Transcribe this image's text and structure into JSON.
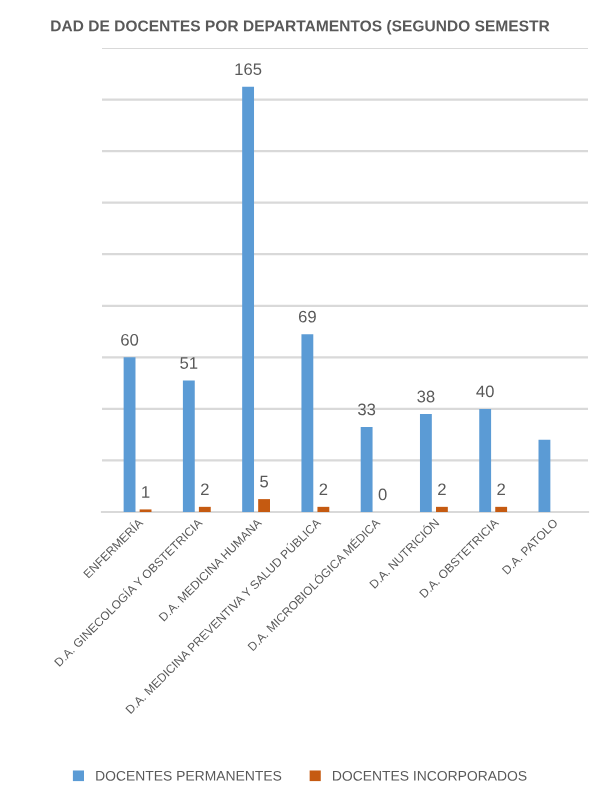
{
  "chart_data": {
    "type": "bar",
    "title": "DAD DE DOCENTES POR DEPARTAMENTOS (SEGUNDO SEMESTR",
    "categories": [
      "ENFERMERÍA",
      "D.A. GINECOLOGÍA Y OBSTETRICIA",
      "D.A. MEDICINA HUMANA",
      "D.A. MEDICINA PREVENTIVA Y SALUD PÚBLICA",
      "D.A. MICROBIOLÓGICA MÉDICA",
      "D.A. NUTRICIÓN",
      "D.A. OBSTETRICIA",
      "D.A. PATOLO"
    ],
    "series": [
      {
        "name": "DOCENTES PERMANENTES",
        "color": "#5b9bd5",
        "values": [
          60,
          51,
          165,
          69,
          33,
          38,
          40,
          28
        ],
        "value_labels": [
          "60",
          "51",
          "165",
          "69",
          "33",
          "38",
          "40",
          null
        ]
      },
      {
        "name": "DOCENTES INCORPORADOS",
        "color": "#c55a11",
        "values": [
          1,
          2,
          5,
          2,
          0,
          2,
          2,
          null
        ],
        "value_labels": [
          "1",
          "2",
          "5",
          "2",
          "0",
          "2",
          "2",
          null
        ]
      }
    ],
    "ylim": [
      0,
      180
    ],
    "yticks": [
      {
        "value": 0,
        "label": null
      },
      {
        "value": 20,
        "label": null
      },
      {
        "value": 40,
        "label": null
      },
      {
        "value": 60,
        "label": null
      },
      {
        "value": 80,
        "label": null
      },
      {
        "value": 100,
        "label": null
      },
      {
        "value": 120,
        "label": null
      },
      {
        "value": 140,
        "label": null
      },
      {
        "value": 160,
        "label": null
      },
      {
        "value": 180,
        "label": null
      }
    ],
    "grid": "y",
    "legend": "bottom"
  }
}
